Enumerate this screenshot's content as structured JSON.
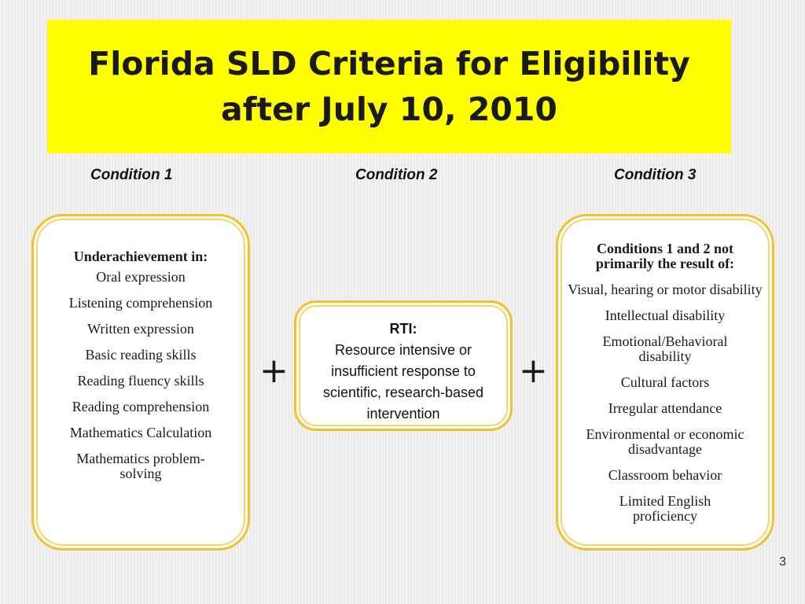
{
  "title": {
    "line1": "Florida SLD Criteria for Eligibility",
    "line2": "after July 10, 2010"
  },
  "conditions": {
    "c1_label": "Condition 1",
    "c2_label": "Condition 2",
    "c3_label": "Condition 3"
  },
  "box1": {
    "heading": "Underachievement in:",
    "items": [
      "Oral expression",
      "Listening comprehension",
      "Written expression",
      "Basic reading skills",
      "Reading fluency skills",
      "Reading comprehension",
      "Mathematics Calculation",
      "Mathematics problem-solving"
    ]
  },
  "box2": {
    "heading": "RTI:",
    "body": "Resource intensive or insufficient response to scientific, research-based intervention"
  },
  "box3": {
    "heading": "Conditions 1 and 2 not primarily the result of:",
    "items": [
      "Visual, hearing or motor disability",
      "Intellectual disability",
      "Emotional/Behavioral disability",
      "Cultural factors",
      "Irregular attendance",
      "Environmental or economic disadvantage",
      "Classroom behavior",
      "Limited English proficiency"
    ]
  },
  "operators": {
    "plus1": "+",
    "plus2": "+"
  },
  "page_number": "3",
  "colors": {
    "title_background": "#ffff00",
    "box_border": "#f2c12e"
  }
}
